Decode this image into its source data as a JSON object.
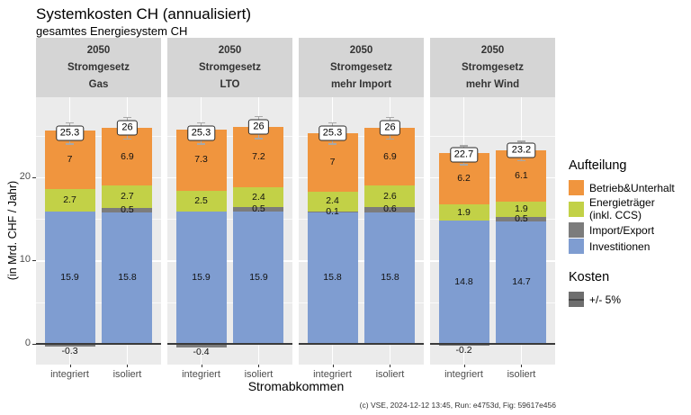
{
  "chart_data": {
    "type": "bar",
    "stacked": true,
    "title": "Systemkosten CH (annualisiert)",
    "subtitle": "gesamtes Energiesystem CH",
    "xlabel": "Stromabkommen",
    "ylabel": "(in Mrd. CHF / Jahr)",
    "caption": "(c) VSE, 2024-12-12 13:45, Run: e4753d, Fig: 59617e456",
    "ylim": [
      -2.5,
      29.6
    ],
    "yticks": [
      0,
      10,
      20
    ],
    "grid": true,
    "legend_position": "right",
    "categories": [
      "integriert",
      "isoliert"
    ],
    "stack_order": [
      "Investitionen",
      "Import/Export",
      "Energieträger (inkl. CCS)",
      "Betrieb&Unterhalt"
    ],
    "colors": {
      "Betrieb&Unterhalt": "#F0953E",
      "Energieträger (inkl. CCS)": "#C2D147",
      "Import/Export": "#7c7c7c",
      "Investitionen": "#7F9DD1"
    },
    "legend": {
      "fill_title": "Aufteilung",
      "fill_items": [
        {
          "label": [
            "Betrieb&Unterhalt"
          ],
          "color": "#F0953E"
        },
        {
          "label": [
            "Energieträger",
            "(inkl. CCS)"
          ],
          "color": "#C2D147"
        },
        {
          "label": [
            "Import/Export"
          ],
          "color": "#7c7c7c"
        },
        {
          "label": [
            "Investitionen"
          ],
          "color": "#7F9DD1"
        }
      ],
      "kosten_title": "Kosten",
      "kosten_item": "+/- 5%"
    },
    "error_bar_pct": 5,
    "facets": [
      {
        "strip": [
          "2050",
          "Stromgesetz",
          "Gas"
        ],
        "bars": [
          {
            "category": "integriert",
            "total": 25.3,
            "total_label": "25.3",
            "segments": [
              {
                "name": "Investitionen",
                "value": 15.9,
                "label": "15.9"
              },
              {
                "name": "Import/Export",
                "value": -0.3,
                "label": "-0.3"
              },
              {
                "name": "Energieträger (inkl. CCS)",
                "value": 2.7,
                "label": "2.7"
              },
              {
                "name": "Betrieb&Unterhalt",
                "value": 7.0,
                "label": "7"
              }
            ]
          },
          {
            "category": "isoliert",
            "total": 25.9,
            "total_label": "26",
            "segments": [
              {
                "name": "Investitionen",
                "value": 15.8,
                "label": "15.8"
              },
              {
                "name": "Import/Export",
                "value": 0.5,
                "label": "0.5"
              },
              {
                "name": "Energieträger (inkl. CCS)",
                "value": 2.7,
                "label": "2.7"
              },
              {
                "name": "Betrieb&Unterhalt",
                "value": 6.9,
                "label": "6.9"
              }
            ]
          }
        ]
      },
      {
        "strip": [
          "2050",
          "Stromgesetz",
          "LTO"
        ],
        "bars": [
          {
            "category": "integriert",
            "total": 25.3,
            "total_label": "25.3",
            "segments": [
              {
                "name": "Investitionen",
                "value": 15.9,
                "label": "15.9"
              },
              {
                "name": "Import/Export",
                "value": -0.4,
                "label": "-0.4"
              },
              {
                "name": "Energieträger (inkl. CCS)",
                "value": 2.5,
                "label": "2.5"
              },
              {
                "name": "Betrieb&Unterhalt",
                "value": 7.3,
                "label": "7.3"
              }
            ]
          },
          {
            "category": "isoliert",
            "total": 26.0,
            "total_label": "26",
            "segments": [
              {
                "name": "Investitionen",
                "value": 15.9,
                "label": "15.9"
              },
              {
                "name": "Import/Export",
                "value": 0.5,
                "label": "0.5"
              },
              {
                "name": "Energieträger (inkl. CCS)",
                "value": 2.4,
                "label": "2.4"
              },
              {
                "name": "Betrieb&Unterhalt",
                "value": 7.2,
                "label": "7.2"
              }
            ]
          }
        ]
      },
      {
        "strip": [
          "2050",
          "Stromgesetz",
          "mehr Import"
        ],
        "bars": [
          {
            "category": "integriert",
            "total": 25.3,
            "total_label": "25.3",
            "segments": [
              {
                "name": "Investitionen",
                "value": 15.8,
                "label": "15.8"
              },
              {
                "name": "Import/Export",
                "value": 0.1,
                "label": "0.1"
              },
              {
                "name": "Energieträger (inkl. CCS)",
                "value": 2.4,
                "label": "2.4"
              },
              {
                "name": "Betrieb&Unterhalt",
                "value": 7.0,
                "label": "7"
              }
            ]
          },
          {
            "category": "isoliert",
            "total": 25.9,
            "total_label": "26",
            "segments": [
              {
                "name": "Investitionen",
                "value": 15.8,
                "label": "15.8"
              },
              {
                "name": "Import/Export",
                "value": 0.6,
                "label": "0.6"
              },
              {
                "name": "Energieträger (inkl. CCS)",
                "value": 2.6,
                "label": "2.6"
              },
              {
                "name": "Betrieb&Unterhalt",
                "value": 6.9,
                "label": "6.9"
              }
            ]
          }
        ]
      },
      {
        "strip": [
          "2050",
          "Stromgesetz",
          "mehr Wind"
        ],
        "bars": [
          {
            "category": "integriert",
            "total": 22.7,
            "total_label": "22.7",
            "segments": [
              {
                "name": "Investitionen",
                "value": 14.8,
                "label": "14.8"
              },
              {
                "name": "Import/Export",
                "value": -0.2,
                "label": "-0.2"
              },
              {
                "name": "Energieträger (inkl. CCS)",
                "value": 1.9,
                "label": "1.9"
              },
              {
                "name": "Betrieb&Unterhalt",
                "value": 6.2,
                "label": "6.2"
              }
            ]
          },
          {
            "category": "isoliert",
            "total": 23.2,
            "total_label": "23.2",
            "segments": [
              {
                "name": "Investitionen",
                "value": 14.7,
                "label": "14.7"
              },
              {
                "name": "Import/Export",
                "value": 0.5,
                "label": "0.5"
              },
              {
                "name": "Energieträger (inkl. CCS)",
                "value": 1.9,
                "label": "1.9"
              },
              {
                "name": "Betrieb&Unterhalt",
                "value": 6.1,
                "label": "6.1"
              }
            ]
          }
        ]
      }
    ]
  }
}
